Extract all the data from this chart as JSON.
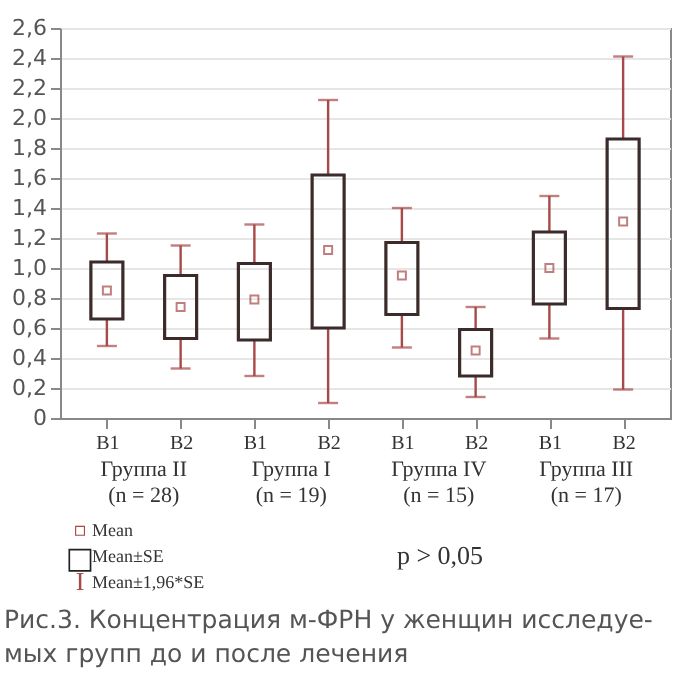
{
  "chart_data": {
    "type": "box",
    "categories": [
      "B1",
      "B2",
      "B1",
      "B2",
      "B1",
      "B2",
      "B1",
      "B2"
    ],
    "series": [
      {
        "color": "#a84848",
        "boxes": [
          {
            "low": 0.48,
            "q1": 0.66,
            "median": 0.85,
            "q3": 1.04,
            "high": 1.23
          },
          {
            "low": 0.33,
            "q1": 0.53,
            "median": 0.74,
            "q3": 0.95,
            "high": 1.15
          },
          {
            "low": 0.28,
            "q1": 0.52,
            "median": 0.79,
            "q3": 1.03,
            "high": 1.29
          },
          {
            "low": 0.1,
            "q1": 0.6,
            "median": 1.12,
            "q3": 1.62,
            "high": 2.12
          },
          {
            "low": 0.47,
            "q1": 0.69,
            "median": 0.95,
            "q3": 1.17,
            "high": 1.4
          },
          {
            "low": 0.14,
            "q1": 0.28,
            "median": 0.45,
            "q3": 0.59,
            "high": 0.74
          },
          {
            "low": 0.53,
            "q1": 0.76,
            "median": 1.0,
            "q3": 1.24,
            "high": 1.48
          },
          {
            "low": 0.19,
            "q1": 0.73,
            "median": 1.31,
            "q3": 1.86,
            "high": 2.41
          }
        ]
      }
    ],
    "ylim": [
      0,
      2.6
    ],
    "yticks": [
      0,
      {
        "value": 0.2,
        "label": "0,2"
      },
      {
        "value": 0.4,
        "label": "0,4"
      },
      {
        "value": 0.6,
        "label": "0,6"
      },
      {
        "value": 0.8,
        "label": "0,8"
      },
      {
        "value": 1.0,
        "label": "1,0"
      },
      {
        "value": 1.2,
        "label": "1,2"
      },
      {
        "value": 1.4,
        "label": "1,4"
      },
      {
        "value": 1.6,
        "label": "1,6"
      },
      {
        "value": 1.8,
        "label": "1,8"
      },
      {
        "value": 2.0,
        "label": "2,0"
      },
      {
        "value": 2.2,
        "label": "2,2"
      },
      {
        "value": 2.4,
        "label": "2,4"
      },
      {
        "value": 2.6,
        "label": "2,6"
      }
    ],
    "grid": "y",
    "annotations": [
      "Группа II\n(n = 28)",
      "Группа I\n(n = 19)",
      "Группа IV\n(n = 15)",
      "Группа III\n(n = 17)",
      "▫",
      "Mean",
      "□",
      "Mean±SE",
      "I",
      "Mean±1,96*SE",
      "p > 0,05",
      "Рис.3. Концентрация м-ФРН у женщин исследуе-\nмых групп до и после лечения"
    ]
  }
}
